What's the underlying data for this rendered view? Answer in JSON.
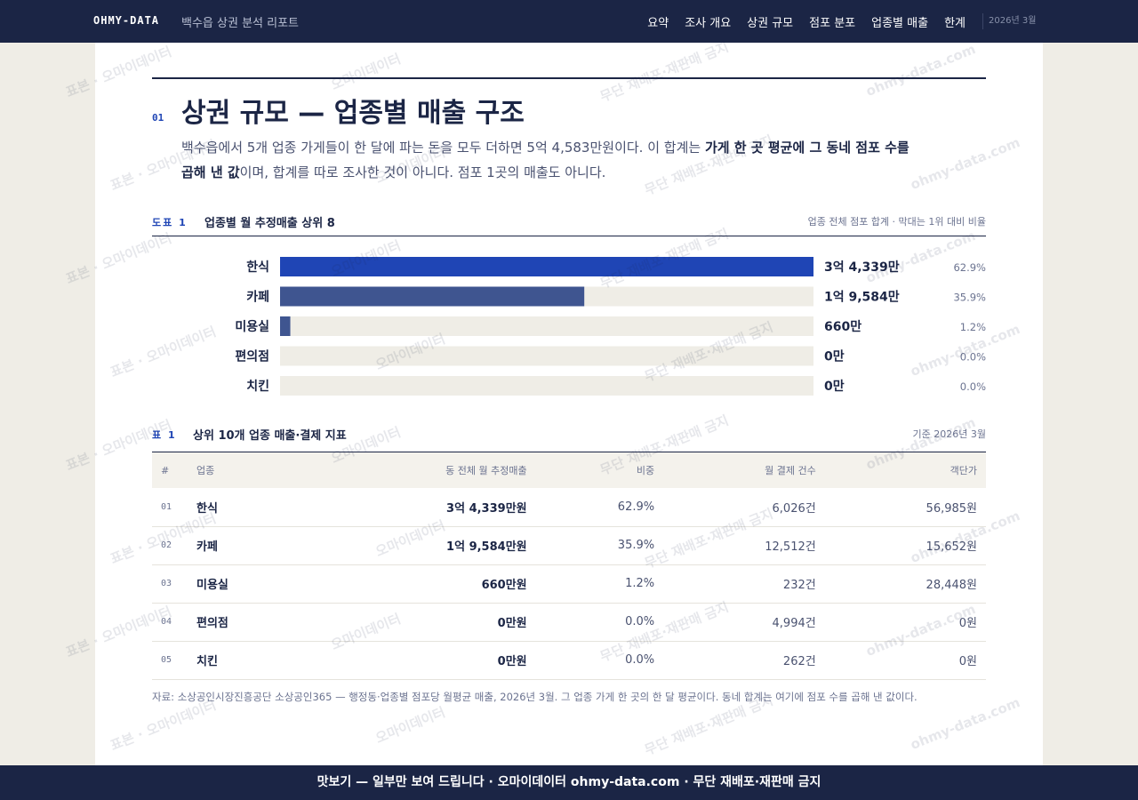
{
  "nav": {
    "brand": "OHMY-DATA",
    "subtitle": "백수읍 상권 분석 리포트",
    "links": [
      "요약",
      "조사 개요",
      "상권 규모",
      "점포 분포",
      "업종별 매출",
      "한계"
    ],
    "date": "2026년 3월"
  },
  "section": {
    "number": "01",
    "title": "상권 규모 — 업종별 매출 구조",
    "lead": [
      "백수읍에서 5개 업종 가게들이 한 달에 파는 돈을 모두 더하면 5억 4,583만원이다. 이 합계는 ",
      "가게 한 곳 평균에 그 동네 점포 수를 곱해 낸 값",
      "이며, 합계를 따로 조사한 것이 아니다. 점포 1곳의 매출도 아니다."
    ]
  },
  "figure": {
    "type": "bar",
    "label": "도표 1",
    "title": "업종별 월 추정매출 상위 8",
    "note": "업종 전체 점포 합계 · 막대는 1위 대비 비율",
    "categories": [
      "한식",
      "카페",
      "미용실",
      "편의점",
      "치킨"
    ],
    "values": [
      34339,
      19584,
      660,
      0,
      0
    ],
    "value_labels": [
      "3억 4,339만",
      "1억 9,584만",
      "660만",
      "0만",
      "0만"
    ],
    "share_labels": [
      "62.9%",
      "35.9%",
      "1.2%",
      "0.0%",
      "0.0%"
    ],
    "colors": [
      "#1f45b5",
      "#3f5590",
      "#3f5590",
      "#8891aa",
      "#8891aa"
    ]
  },
  "table": {
    "label": "표 1",
    "title": "상위 10개 업종 매출·결제 지표",
    "note": "기준 2026년 3월",
    "headers": [
      "#",
      "업종",
      "동 전체 월 추정매출",
      "비중",
      "월 결제 건수",
      "객단가"
    ],
    "rows": [
      [
        "01",
        "한식",
        "3억 4,339만원",
        "62.9%",
        "6,026건",
        "56,985원"
      ],
      [
        "02",
        "카페",
        "1억 9,584만원",
        "35.9%",
        "12,512건",
        "15,652원"
      ],
      [
        "03",
        "미용실",
        "660만원",
        "1.2%",
        "232건",
        "28,448원"
      ],
      [
        "04",
        "편의점",
        "0만원",
        "0.0%",
        "4,994건",
        "0원"
      ],
      [
        "05",
        "치킨",
        "0만원",
        "0.0%",
        "262건",
        "0원"
      ]
    ]
  },
  "source": "자료: 소상공인시장진흥공단 소상공인365 — 행정동·업종별 점포당 월평균 매출, 2026년 3월. 그 업종 가게 한 곳의 한 달 평균이다. 동네 합계는 여기에 점포 수를 곱해 낸 값이다.",
  "footer": "맛보기 — 일부만 보여 드립니다 · 오마이데이터 ohmy-data.com · 무단 재배포·재판매 금지",
  "watermark": [
    "표본 · 오마이데이터",
    "오마이데이터",
    "무단 재배포·재판매 금지",
    "ohmy-data.com"
  ]
}
